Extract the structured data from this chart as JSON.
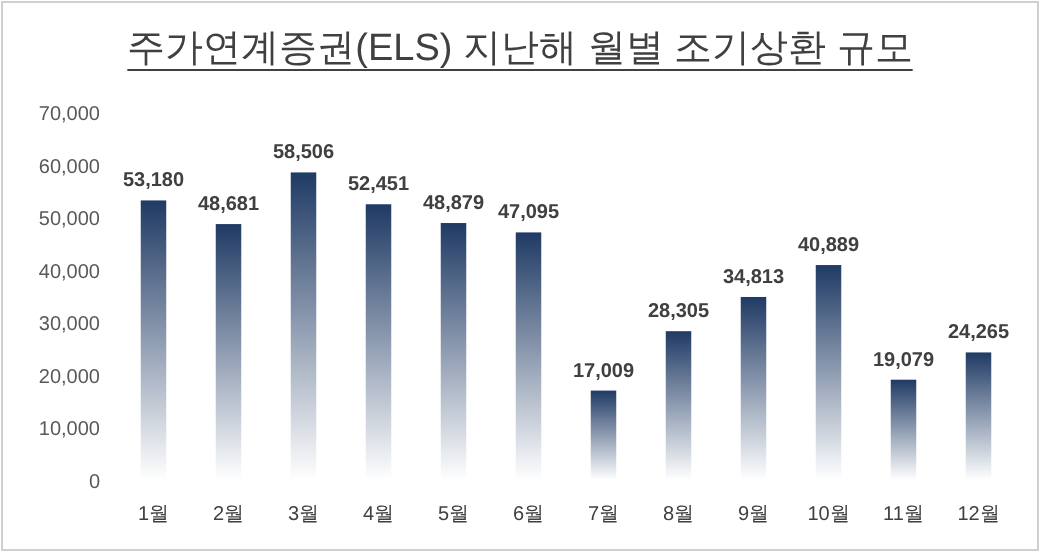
{
  "chart_data": {
    "type": "bar",
    "title": "주가연계증권(ELS) 지난해 월별 조기상환 규모",
    "categories": [
      "1월",
      "2월",
      "3월",
      "4월",
      "5월",
      "6월",
      "7월",
      "8월",
      "9월",
      "10월",
      "11월",
      "12월"
    ],
    "values": [
      53180,
      48681,
      58506,
      52451,
      48879,
      47095,
      17009,
      28305,
      34813,
      40889,
      19079,
      24265
    ],
    "value_labels": [
      "53,180",
      "48,681",
      "58,506",
      "52,451",
      "48,879",
      "47,095",
      "17,009",
      "28,305",
      "34,813",
      "40,889",
      "19,079",
      "24,265"
    ],
    "color": "#1f3a64",
    "ylim": [
      0,
      70000
    ],
    "yticks": [
      {
        "value": 0,
        "label": "0"
      },
      {
        "value": 10000,
        "label": "10,000"
      },
      {
        "value": 20000,
        "label": "20,000"
      },
      {
        "value": 30000,
        "label": "30,000"
      },
      {
        "value": 40000,
        "label": "40,000"
      },
      {
        "value": 50000,
        "label": "50,000"
      },
      {
        "value": 60000,
        "label": "60,000"
      },
      {
        "value": 70000,
        "label": "70,000"
      }
    ],
    "grid": false
  }
}
